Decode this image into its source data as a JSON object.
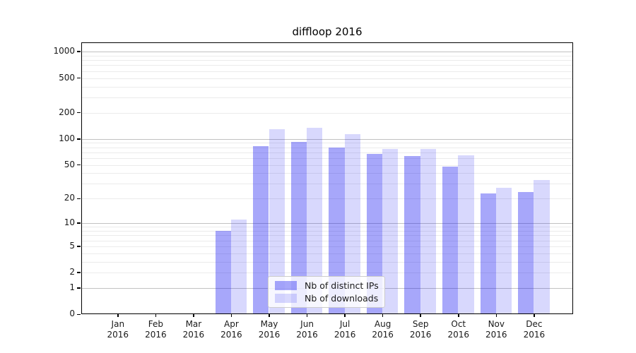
{
  "title": "diffloop 2016",
  "chart_data": {
    "type": "bar",
    "title": "diffloop 2016",
    "categories": [
      "Jan",
      "Feb",
      "Mar",
      "Apr",
      "May",
      "Jun",
      "Jul",
      "Aug",
      "Sep",
      "Oct",
      "Nov",
      "Dec"
    ],
    "category_year": "2016",
    "series": [
      {
        "name": "Nb of distinct IPs",
        "color": "rgba(10,10,240,0.36)",
        "values": [
          0,
          0,
          0,
          8,
          83,
          92,
          80,
          67,
          63,
          48,
          23,
          24
        ]
      },
      {
        "name": "Nb of downloads",
        "color": "rgba(10,10,240,0.16)",
        "values": [
          0,
          0,
          0,
          11,
          129,
          134,
          114,
          76,
          76,
          65,
          27,
          33
        ]
      }
    ],
    "yticks": [
      0,
      1,
      2,
      5,
      10,
      20,
      50,
      100,
      200,
      500,
      1000
    ],
    "major_gridlines": [
      1,
      10,
      100,
      1000
    ],
    "minor_gridlines": [
      2,
      3,
      4,
      5,
      6,
      7,
      8,
      9,
      20,
      30,
      40,
      50,
      60,
      70,
      80,
      90,
      200,
      300,
      400,
      500,
      600,
      700,
      800,
      900
    ],
    "yscale": "log10(1+x)",
    "ylim": [
      0,
      1280
    ],
    "xlabel": "",
    "ylabel": "",
    "grid": "horizontal",
    "legend_position": "lower-center-inside",
    "colors": {
      "bar_distinct_ips": "rgba(10,10,240,0.36)",
      "bar_downloads": "rgba(10,10,240,0.16)",
      "major_grid": "#c2c2c2",
      "minor_grid": "#ebebeb",
      "axis": "#000000",
      "background": "#ffffff"
    }
  }
}
